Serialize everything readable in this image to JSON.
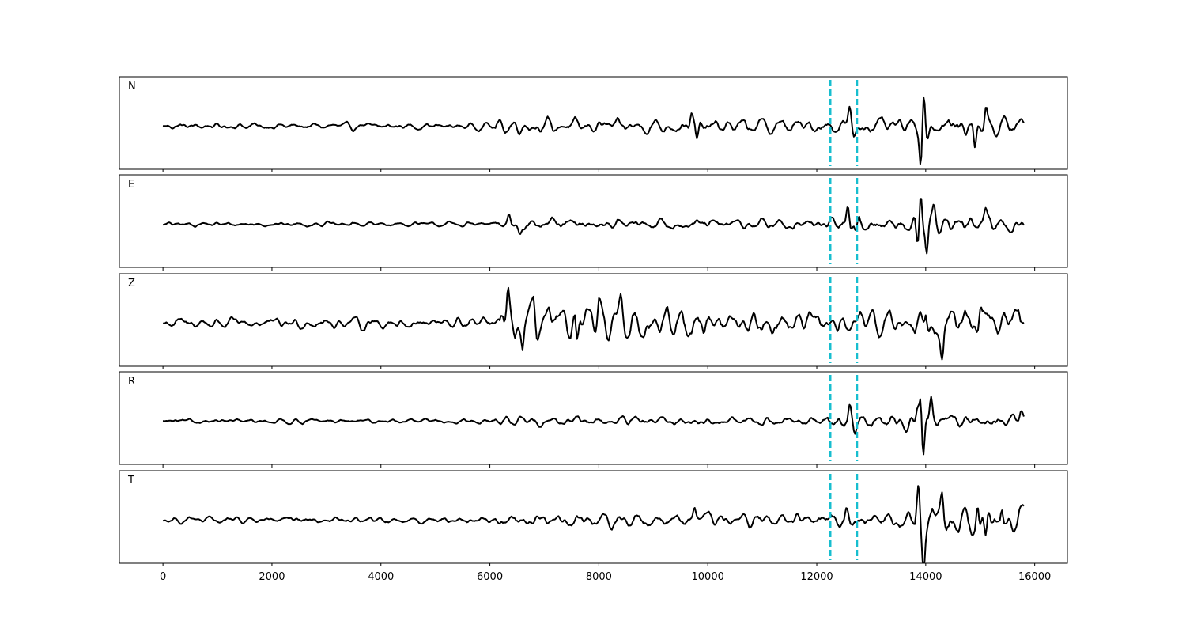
{
  "chart_data": {
    "type": "line",
    "xlim": [
      -800,
      16600
    ],
    "xticks": [
      0,
      2000,
      4000,
      6000,
      8000,
      10000,
      12000,
      14000,
      16000
    ],
    "xtick_labels": [
      "0",
      "2000",
      "4000",
      "6000",
      "8000",
      "10000",
      "12000",
      "14000",
      "16000"
    ],
    "x_start": 0,
    "x_end": 15800,
    "markers": [
      12250,
      12740
    ],
    "marker_color": "#17becf",
    "trace_color": "#000000",
    "grid": false,
    "ylim": [
      -1,
      1
    ],
    "panels": [
      {
        "name": "N",
        "segments": [
          {
            "from": 0,
            "to": 6100,
            "amp": 0.07
          },
          {
            "from": 6100,
            "to": 12200,
            "amp": 0.15
          },
          {
            "from": 12200,
            "to": 13800,
            "amp": 0.16
          },
          {
            "from": 13800,
            "to": 15800,
            "amp": 0.22
          }
        ],
        "peaks": [
          {
            "x": 9700,
            "y": 0.28
          },
          {
            "x": 9800,
            "y": -0.38
          },
          {
            "x": 12600,
            "y": 0.42
          },
          {
            "x": 12680,
            "y": -0.3
          },
          {
            "x": 13910,
            "y": -0.82
          },
          {
            "x": 13960,
            "y": 0.95
          },
          {
            "x": 14030,
            "y": -0.45
          },
          {
            "x": 14900,
            "y": -0.55
          },
          {
            "x": 15100,
            "y": 0.55
          }
        ]
      },
      {
        "name": "E",
        "segments": [
          {
            "from": 0,
            "to": 6100,
            "amp": 0.05
          },
          {
            "from": 6100,
            "to": 12200,
            "amp": 0.12
          },
          {
            "from": 12200,
            "to": 13800,
            "amp": 0.15
          },
          {
            "from": 13800,
            "to": 15800,
            "amp": 0.17
          }
        ],
        "peaks": [
          {
            "x": 6350,
            "y": 0.22
          },
          {
            "x": 6550,
            "y": -0.18
          },
          {
            "x": 12570,
            "y": 0.52
          },
          {
            "x": 12720,
            "y": -0.38
          },
          {
            "x": 13850,
            "y": -0.62
          },
          {
            "x": 13910,
            "y": 1.0
          },
          {
            "x": 14020,
            "y": -0.72
          },
          {
            "x": 14150,
            "y": 0.32
          },
          {
            "x": 15100,
            "y": 0.3
          }
        ]
      },
      {
        "name": "Z",
        "segments": [
          {
            "from": 0,
            "to": 6200,
            "amp": 0.12
          },
          {
            "from": 6200,
            "to": 10000,
            "amp": 0.32
          },
          {
            "from": 10000,
            "to": 13800,
            "amp": 0.24
          },
          {
            "from": 13800,
            "to": 15800,
            "amp": 0.3
          }
        ],
        "peaks": [
          {
            "x": 6330,
            "y": 0.95
          },
          {
            "x": 6450,
            "y": -0.45
          },
          {
            "x": 6600,
            "y": -0.68
          },
          {
            "x": 6800,
            "y": 0.52
          },
          {
            "x": 7600,
            "y": -0.65
          },
          {
            "x": 8000,
            "y": 0.5
          },
          {
            "x": 8400,
            "y": 0.5
          },
          {
            "x": 14000,
            "y": 0.5
          },
          {
            "x": 14300,
            "y": -0.62
          },
          {
            "x": 15000,
            "y": 0.55
          },
          {
            "x": 15700,
            "y": 0.45
          }
        ]
      },
      {
        "name": "R",
        "segments": [
          {
            "from": 0,
            "to": 6100,
            "amp": 0.05
          },
          {
            "from": 6100,
            "to": 12200,
            "amp": 0.1
          },
          {
            "from": 12200,
            "to": 13800,
            "amp": 0.16
          },
          {
            "from": 13800,
            "to": 15800,
            "amp": 0.14
          }
        ],
        "peaks": [
          {
            "x": 12600,
            "y": 0.38
          },
          {
            "x": 12700,
            "y": -0.28
          },
          {
            "x": 13850,
            "y": 0.4
          },
          {
            "x": 13950,
            "y": -1.0
          },
          {
            "x": 13910,
            "y": 0.72
          },
          {
            "x": 14100,
            "y": 0.6
          },
          {
            "x": 15750,
            "y": 0.25
          }
        ]
      },
      {
        "name": "T",
        "segments": [
          {
            "from": 0,
            "to": 6100,
            "amp": 0.07
          },
          {
            "from": 6100,
            "to": 12200,
            "amp": 0.15
          },
          {
            "from": 12200,
            "to": 13800,
            "amp": 0.18
          },
          {
            "from": 13800,
            "to": 15800,
            "amp": 0.3
          }
        ],
        "peaks": [
          {
            "x": 9750,
            "y": 0.35
          },
          {
            "x": 12550,
            "y": 0.35
          },
          {
            "x": 13870,
            "y": 0.95
          },
          {
            "x": 13960,
            "y": -0.82
          },
          {
            "x": 14300,
            "y": 0.55
          },
          {
            "x": 14950,
            "y": 0.55
          },
          {
            "x": 15100,
            "y": -0.62
          },
          {
            "x": 15400,
            "y": 0.35
          }
        ]
      }
    ]
  }
}
